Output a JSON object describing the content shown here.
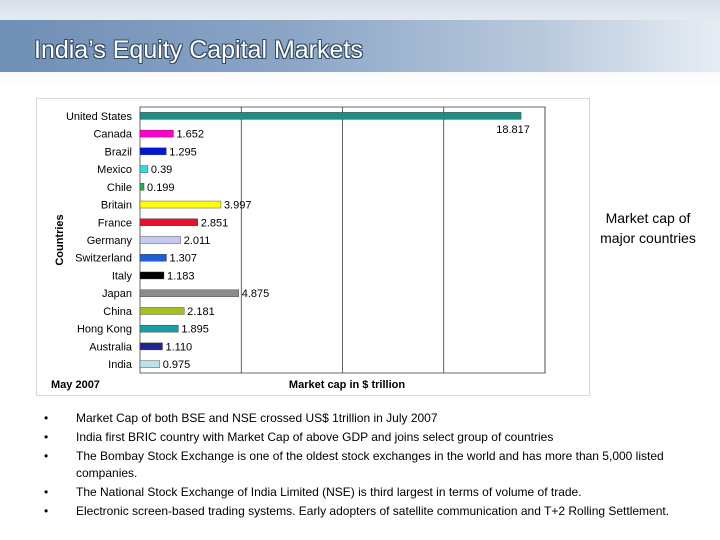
{
  "slide": {
    "title": "India’s Equity Capital Markets",
    "side_caption": "Market cap of major countries",
    "bullets": [
      "Market Cap of both BSE and NSE crossed US$ 1trillion in July 2007",
      "India first BRIC country with Market Cap of above GDP and joins select group of countries",
      "The Bombay Stock Exchange is one of the oldest stock exchanges in the world and has more than 5,000 listed companies.",
      "The National Stock Exchange of India Limited (NSE) is third largest in terms of volume of trade.",
      "Electronic screen-based trading systems. Early adopters of satellite communication and T+2 Rolling Settlement."
    ],
    "bullet_symbol": "•"
  },
  "chart_data": {
    "type": "bar",
    "orientation": "horizontal",
    "ylabel": "Countries",
    "xlabel": "Market cap in $ trillion",
    "note": "May 2007",
    "xlim": [
      0,
      20
    ],
    "grid": true,
    "categories": [
      "United States",
      "Canada",
      "Brazil",
      "Mexico",
      "Chile",
      "Britain",
      "France",
      "Germany",
      "Switzerland",
      "Italy",
      "Japan",
      "China",
      "Hong Kong",
      "Australia",
      "India"
    ],
    "values": [
      18.817,
      1.652,
      1.295,
      0.39,
      0.199,
      3.997,
      2.851,
      2.011,
      1.307,
      1.183,
      4.875,
      2.181,
      1.895,
      1.11,
      0.975
    ],
    "value_labels": [
      "18.817",
      "1.652",
      "1.295",
      "0.39",
      "0.199",
      "3.997",
      "2.851",
      "2.011",
      "1.307",
      "1.183",
      "4.875",
      "2.181",
      "1.895",
      "1.110",
      "0.975"
    ],
    "colors": [
      "#1f8f86",
      "#ff00cc",
      "#0018d6",
      "#3ad7e0",
      "#22b14c",
      "#ffff00",
      "#e8102a",
      "#c7c8f5",
      "#1f5fd6",
      "#000000",
      "#8c8c8c",
      "#a5c020",
      "#169fa8",
      "#23238f",
      "#bde0ea"
    ]
  }
}
